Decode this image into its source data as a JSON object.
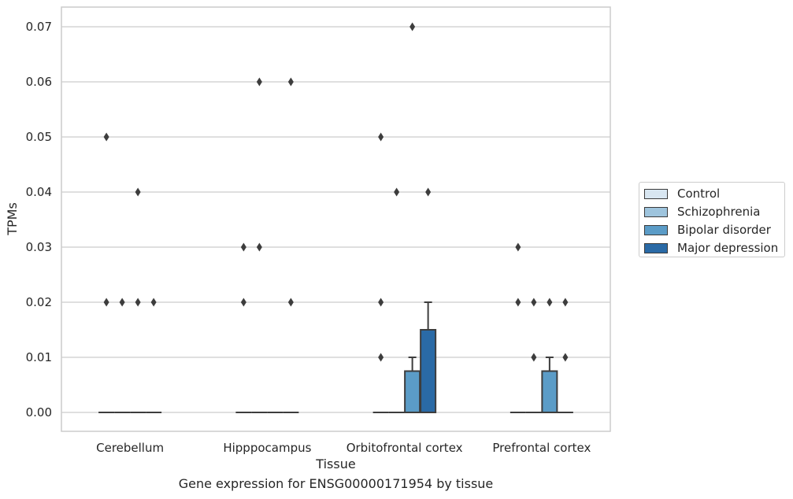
{
  "chart_data": {
    "type": "box",
    "title": "",
    "caption": "Gene expression for ENSG00000171954 by tissue",
    "xlabel": "Tissue",
    "ylabel": "TPMs",
    "ylim": [
      -0.0035,
      0.0735
    ],
    "yticks": [
      0.0,
      0.01,
      0.02,
      0.03,
      0.04,
      0.05,
      0.06,
      0.07
    ],
    "ytick_labels": [
      "0.00",
      "0.01",
      "0.02",
      "0.03",
      "0.04",
      "0.05",
      "0.06",
      "0.07"
    ],
    "grid": "horizontal",
    "legend_position": "right, outside plot",
    "categories": [
      "Cerebellum",
      "Hipppocampus",
      "Orbitofrontal cortex",
      "Prefrontal cortex"
    ],
    "series": [
      {
        "name": "Control",
        "color": "#d8e6f1",
        "boxes": [
          {
            "q1": 0,
            "median": 0,
            "q3": 0,
            "whisker_low": 0,
            "whisker_high": 0,
            "outliers": [
              0.05,
              0.02
            ]
          },
          {
            "q1": 0,
            "median": 0,
            "q3": 0,
            "whisker_low": 0,
            "whisker_high": 0,
            "outliers": [
              0.02,
              0.03
            ]
          },
          {
            "q1": 0,
            "median": 0,
            "q3": 0,
            "whisker_low": 0,
            "whisker_high": 0,
            "outliers": [
              0.05,
              0.02,
              0.01
            ]
          },
          {
            "q1": 0,
            "median": 0,
            "q3": 0,
            "whisker_low": 0,
            "whisker_high": 0,
            "outliers": [
              0.03,
              0.02
            ]
          }
        ]
      },
      {
        "name": "Schizophrenia",
        "color": "#9ec4dd",
        "boxes": [
          {
            "q1": 0,
            "median": 0,
            "q3": 0,
            "whisker_low": 0,
            "whisker_high": 0,
            "outliers": [
              0.02
            ]
          },
          {
            "q1": 0,
            "median": 0,
            "q3": 0,
            "whisker_low": 0,
            "whisker_high": 0,
            "outliers": [
              0.06,
              0.03
            ]
          },
          {
            "q1": 0,
            "median": 0,
            "q3": 0,
            "whisker_low": 0,
            "whisker_high": 0,
            "outliers": [
              0.04
            ]
          },
          {
            "q1": 0,
            "median": 0,
            "q3": 0,
            "whisker_low": 0,
            "whisker_high": 0,
            "outliers": [
              0.02,
              0.01
            ]
          }
        ]
      },
      {
        "name": "Bipolar disorder",
        "color": "#5b9cc7",
        "boxes": [
          {
            "q1": 0,
            "median": 0,
            "q3": 0,
            "whisker_low": 0,
            "whisker_high": 0,
            "outliers": [
              0.04,
              0.02
            ]
          },
          {
            "q1": 0,
            "median": 0,
            "q3": 0,
            "whisker_low": 0,
            "whisker_high": 0,
            "outliers": []
          },
          {
            "q1": 0,
            "median": 0,
            "q3": 0.0075,
            "whisker_low": 0,
            "whisker_high": 0.01,
            "outliers": [
              0.07
            ]
          },
          {
            "q1": 0,
            "median": 0,
            "q3": 0.0075,
            "whisker_low": 0,
            "whisker_high": 0.01,
            "outliers": [
              0.02
            ]
          }
        ]
      },
      {
        "name": "Major depression",
        "color": "#2a6aa6",
        "boxes": [
          {
            "q1": 0,
            "median": 0,
            "q3": 0,
            "whisker_low": 0,
            "whisker_high": 0,
            "outliers": [
              0.02
            ]
          },
          {
            "q1": 0,
            "median": 0,
            "q3": 0,
            "whisker_low": 0,
            "whisker_high": 0,
            "outliers": [
              0.06,
              0.02
            ]
          },
          {
            "q1": 0,
            "median": 0,
            "q3": 0.015,
            "whisker_low": 0,
            "whisker_high": 0.02,
            "outliers": [
              0.04
            ]
          },
          {
            "q1": 0,
            "median": 0,
            "q3": 0,
            "whisker_low": 0,
            "whisker_high": 0,
            "outliers": [
              0.02,
              0.01
            ]
          }
        ]
      }
    ]
  }
}
